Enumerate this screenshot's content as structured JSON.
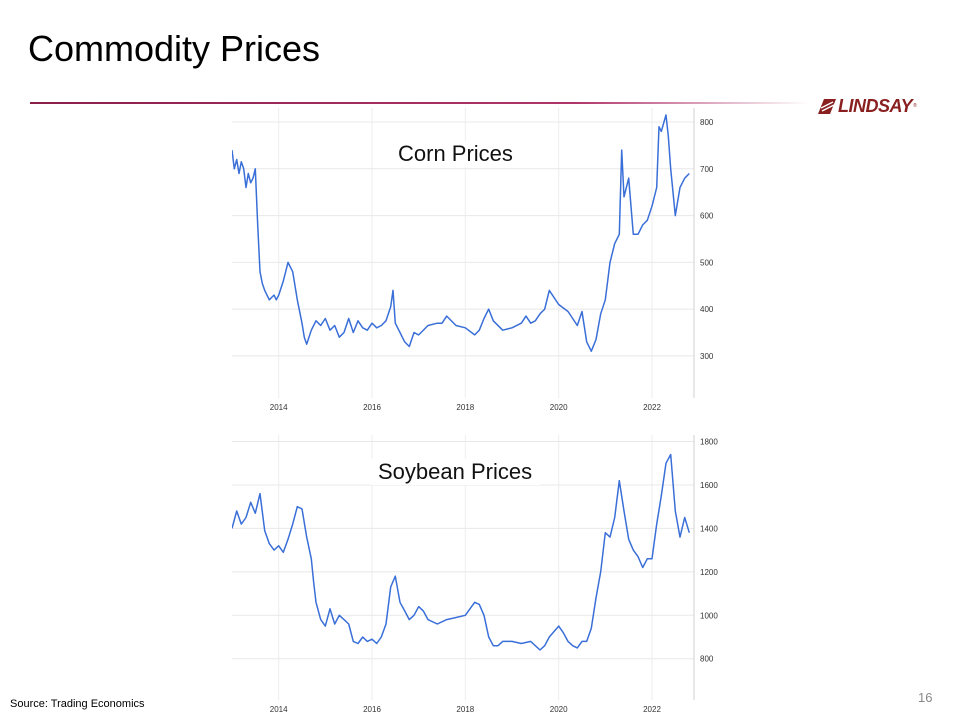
{
  "slide": {
    "title": "Commodity Prices",
    "source": "Source: Trading Economics",
    "page_number": "16",
    "logo_text": "LINDSAY",
    "logo_tm": "®",
    "accent_color": "#9b2a5a",
    "line_color": "#3a6fd8"
  },
  "chart_data": [
    {
      "type": "line",
      "title": "Corn Prices",
      "xlabel": "",
      "ylabel": "",
      "y_axis_side": "right",
      "xlim": [
        2013.0,
        2022.9
      ],
      "ylim": [
        210,
        830
      ],
      "x_ticks": [
        2014,
        2016,
        2018,
        2020,
        2022
      ],
      "x_tick_labels": [
        "2014",
        "2016",
        "2018",
        "2020",
        "2022"
      ],
      "y_ticks": [
        300,
        400,
        500,
        600,
        700,
        800
      ],
      "y_tick_labels": [
        "300",
        "400",
        "500",
        "600",
        "700",
        "800"
      ],
      "grid": true,
      "series": [
        {
          "x": [
            2013.0,
            2013.05,
            2013.1,
            2013.15,
            2013.2,
            2013.25,
            2013.3,
            2013.35,
            2013.4,
            2013.45,
            2013.5,
            2013.55,
            2013.6,
            2013.65,
            2013.7,
            2013.75,
            2013.8,
            2013.85,
            2013.9,
            2013.95,
            2014.0,
            2014.1,
            2014.2,
            2014.3,
            2014.4,
            2014.5,
            2014.55,
            2014.6,
            2014.7,
            2014.8,
            2014.9,
            2015.0,
            2015.1,
            2015.2,
            2015.3,
            2015.4,
            2015.5,
            2015.6,
            2015.7,
            2015.8,
            2015.9,
            2016.0,
            2016.1,
            2016.2,
            2016.3,
            2016.4,
            2016.45,
            2016.5,
            2016.6,
            2016.7,
            2016.8,
            2016.9,
            2017.0,
            2017.2,
            2017.4,
            2017.5,
            2017.6,
            2017.8,
            2018.0,
            2018.2,
            2018.3,
            2018.4,
            2018.5,
            2018.6,
            2018.8,
            2019.0,
            2019.2,
            2019.3,
            2019.4,
            2019.5,
            2019.6,
            2019.7,
            2019.8,
            2020.0,
            2020.2,
            2020.3,
            2020.4,
            2020.5,
            2020.6,
            2020.7,
            2020.8,
            2020.9,
            2021.0,
            2021.1,
            2021.2,
            2021.3,
            2021.35,
            2021.4,
            2021.5,
            2021.6,
            2021.7,
            2021.8,
            2021.9,
            2022.0,
            2022.1,
            2022.15,
            2022.2,
            2022.3,
            2022.35,
            2022.4,
            2022.5,
            2022.6,
            2022.7,
            2022.8
          ],
          "y": [
            740,
            700,
            720,
            690,
            715,
            700,
            660,
            690,
            670,
            680,
            700,
            580,
            480,
            455,
            440,
            430,
            420,
            425,
            430,
            420,
            430,
            460,
            500,
            480,
            420,
            370,
            340,
            325,
            355,
            375,
            365,
            380,
            355,
            365,
            340,
            350,
            380,
            350,
            375,
            360,
            355,
            370,
            360,
            365,
            375,
            405,
            440,
            370,
            350,
            330,
            320,
            350,
            345,
            365,
            370,
            370,
            385,
            365,
            360,
            345,
            355,
            380,
            400,
            375,
            355,
            360,
            370,
            385,
            370,
            375,
            390,
            400,
            440,
            410,
            395,
            380,
            365,
            395,
            330,
            310,
            335,
            390,
            420,
            500,
            540,
            560,
            740,
            640,
            680,
            560,
            560,
            580,
            590,
            620,
            660,
            790,
            780,
            815,
            770,
            700,
            600,
            660,
            680,
            690
          ]
        }
      ]
    },
    {
      "type": "line",
      "title": "Soybean Prices",
      "xlabel": "",
      "ylabel": "",
      "y_axis_side": "right",
      "xlim": [
        2013.0,
        2022.9
      ],
      "ylim": [
        610,
        1830
      ],
      "x_ticks": [
        2014,
        2016,
        2018,
        2020,
        2022
      ],
      "x_tick_labels": [
        "2014",
        "2016",
        "2018",
        "2020",
        "2022"
      ],
      "y_ticks": [
        800,
        1000,
        1200,
        1400,
        1600,
        1800
      ],
      "y_tick_labels": [
        "800",
        "1000",
        "1200",
        "1400",
        "1600",
        "1800"
      ],
      "grid": true,
      "series": [
        {
          "x": [
            2013.0,
            2013.1,
            2013.2,
            2013.3,
            2013.4,
            2013.5,
            2013.6,
            2013.7,
            2013.8,
            2013.9,
            2014.0,
            2014.1,
            2014.2,
            2014.3,
            2014.4,
            2014.5,
            2014.6,
            2014.7,
            2014.75,
            2014.8,
            2014.9,
            2015.0,
            2015.1,
            2015.2,
            2015.3,
            2015.4,
            2015.5,
            2015.6,
            2015.7,
            2015.8,
            2015.9,
            2016.0,
            2016.1,
            2016.2,
            2016.3,
            2016.4,
            2016.5,
            2016.6,
            2016.7,
            2016.8,
            2016.9,
            2017.0,
            2017.1,
            2017.2,
            2017.4,
            2017.6,
            2017.8,
            2018.0,
            2018.1,
            2018.2,
            2018.3,
            2018.4,
            2018.5,
            2018.6,
            2018.7,
            2018.8,
            2019.0,
            2019.2,
            2019.4,
            2019.6,
            2019.7,
            2019.8,
            2020.0,
            2020.1,
            2020.2,
            2020.3,
            2020.4,
            2020.5,
            2020.6,
            2020.7,
            2020.8,
            2020.9,
            2021.0,
            2021.1,
            2021.2,
            2021.3,
            2021.4,
            2021.5,
            2021.6,
            2021.7,
            2021.8,
            2021.9,
            2022.0,
            2022.1,
            2022.2,
            2022.3,
            2022.4,
            2022.5,
            2022.6,
            2022.7,
            2022.8
          ],
          "y": [
            1400,
            1480,
            1420,
            1450,
            1520,
            1470,
            1560,
            1390,
            1330,
            1300,
            1320,
            1290,
            1350,
            1420,
            1500,
            1490,
            1360,
            1260,
            1150,
            1060,
            980,
            950,
            1030,
            960,
            1000,
            980,
            960,
            880,
            870,
            900,
            880,
            890,
            870,
            900,
            960,
            1130,
            1180,
            1060,
            1020,
            980,
            1000,
            1040,
            1020,
            980,
            960,
            980,
            990,
            1000,
            1030,
            1060,
            1050,
            1000,
            900,
            860,
            860,
            880,
            880,
            870,
            880,
            840,
            860,
            900,
            950,
            920,
            880,
            860,
            850,
            880,
            880,
            940,
            1080,
            1200,
            1380,
            1360,
            1450,
            1620,
            1480,
            1350,
            1300,
            1270,
            1220,
            1260,
            1260,
            1420,
            1550,
            1700,
            1740,
            1480,
            1360,
            1450,
            1380
          ]
        }
      ]
    }
  ]
}
